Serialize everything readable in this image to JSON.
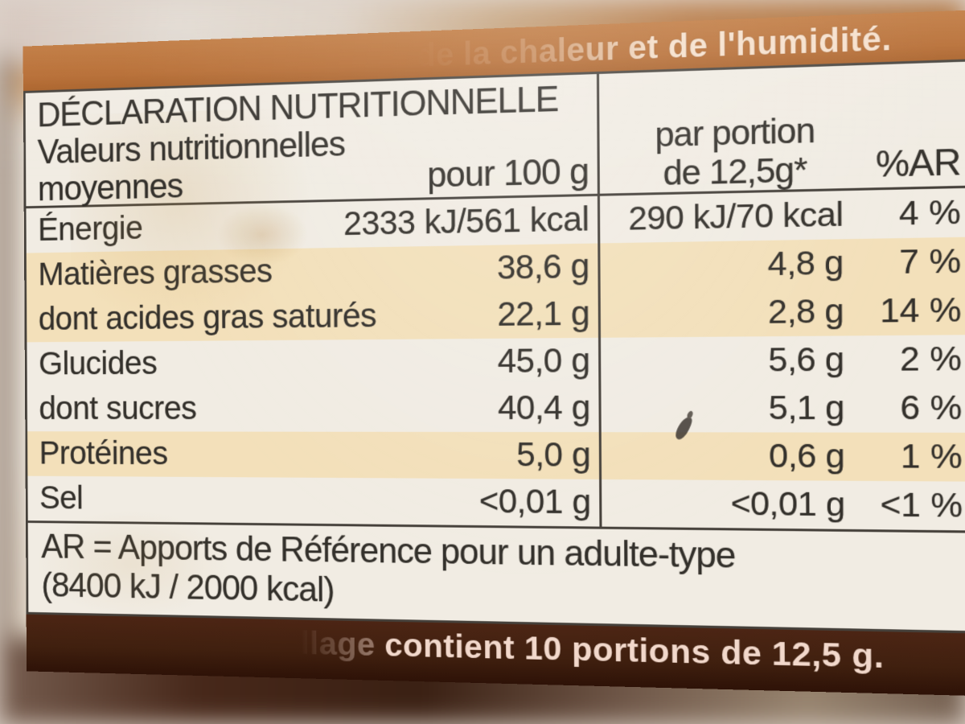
{
  "photo": {
    "top_band_text": "de la chaleur et de l'humidité.",
    "bottom_band": {
      "prefix_fragment": "llage",
      "text": "contient 10 portions de 12,5 g."
    }
  },
  "table": {
    "title": "DÉCLARATION NUTRITIONNELLE",
    "subtitle_line1": "Valeurs nutritionnelles",
    "subtitle_line2": "moyennes",
    "col_per100_header": "pour 100 g",
    "col_portion_header_line1": "par portion",
    "col_portion_header_line2": "de 12,5g*",
    "col_ar_header": "%AR",
    "rows": [
      {
        "label": "Énergie",
        "per100": "2333 kJ/561 kcal",
        "portion": "290 kJ/70 kcal",
        "ar": "4 %",
        "shaded": false
      },
      {
        "label": "Matières grasses",
        "per100": "38,6 g",
        "portion": "4,8 g",
        "ar": "7 %",
        "shaded": true
      },
      {
        "label": "dont acides gras saturés",
        "per100": "22,1 g",
        "portion": "2,8 g",
        "ar": "14 %",
        "shaded": true
      },
      {
        "label": "Glucides",
        "per100": "45,0 g",
        "portion": "5,6 g",
        "ar": "2 %",
        "shaded": false
      },
      {
        "label": "dont sucres",
        "per100": "40,4 g",
        "portion": "5,1 g",
        "ar": "6 %",
        "shaded": false
      },
      {
        "label": "Protéines",
        "per100": "5,0 g",
        "portion": "0,6 g",
        "ar": "1 %",
        "shaded": true
      },
      {
        "label": "Sel",
        "per100": "<0,01 g",
        "portion": "<0,01 g",
        "ar": "<1 %",
        "shaded": false
      }
    ],
    "footnote_line1": "AR = Apports de Référence pour un adulte-type",
    "footnote_line2": "(8400 kJ / 2000 kcal)"
  },
  "colors": {
    "accent": "#b5692e",
    "label_bg": "#f1ece3",
    "stripe": "#f3e0ba",
    "band_brown": "#40200f",
    "border": "#45403a",
    "text": "#33302b",
    "band_text": "#f6dfca"
  }
}
